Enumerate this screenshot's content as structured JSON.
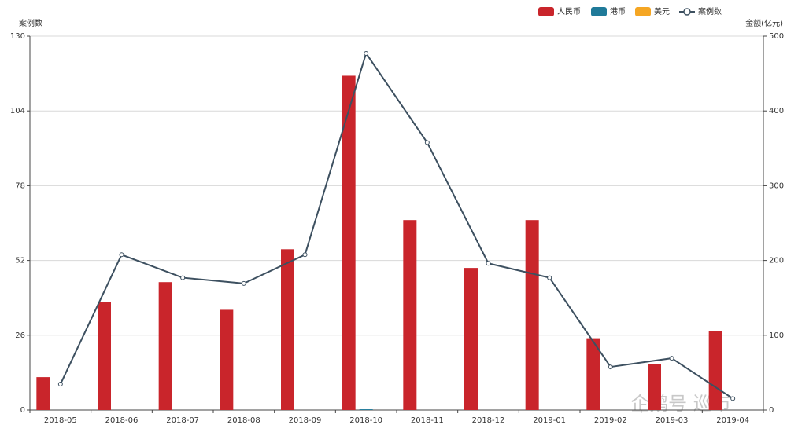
{
  "chart_data": {
    "type": "bar",
    "categories": [
      "2018-05",
      "2018-06",
      "2018-07",
      "2018-08",
      "2018-09",
      "2018-10",
      "2018-11",
      "2018-12",
      "2019-01",
      "2019-02",
      "2019-03",
      "2019-04"
    ],
    "y_label": "案例数",
    "y2_label": "金额(亿元)",
    "ylim": [
      0,
      130
    ],
    "yticks": [
      0,
      26,
      52,
      78,
      104,
      130
    ],
    "y2lim": [
      0,
      500
    ],
    "y2ticks": [
      0,
      100,
      200,
      300,
      400,
      500
    ],
    "grid": true,
    "legend": "top-right",
    "series": [
      {
        "name": "人民币",
        "type": "bar",
        "axis": "y2",
        "color": "#c9252b",
        "values": [
          44,
          144,
          171,
          134,
          215,
          447,
          254,
          190,
          254,
          96,
          61,
          106
        ]
      },
      {
        "name": "港币",
        "type": "bar",
        "axis": "y2",
        "color": "#1f7a99",
        "values": [
          0,
          0,
          0,
          0,
          0,
          1,
          0,
          0,
          0,
          0,
          0,
          0
        ]
      },
      {
        "name": "美元",
        "type": "bar",
        "axis": "y2",
        "color": "#f5a623",
        "values": [
          0,
          0,
          0,
          0,
          0,
          0,
          0,
          0,
          0,
          0,
          0,
          0
        ]
      },
      {
        "name": "案例数",
        "type": "line",
        "color": "#3d5060",
        "values": [
          9,
          54,
          46,
          44,
          54,
          124,
          93,
          51,
          46,
          15,
          18,
          4
        ]
      }
    ],
    "watermark": "企鹅号 巡市"
  }
}
